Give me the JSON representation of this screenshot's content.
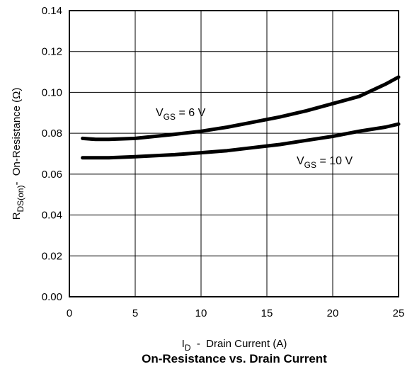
{
  "chart_data": {
    "type": "line",
    "title": "On-Resistance vs. Drain Current",
    "xlabel": {
      "main": "I",
      "sub": "D",
      "rest": "  -  Drain Current (A)"
    },
    "ylabel": {
      "main": "R",
      "sub": "DS(on)",
      "rest": "-  On-Resistance (Ω)"
    },
    "xlim": [
      0,
      25
    ],
    "ylim": [
      0,
      0.14
    ],
    "xticks": [
      "0",
      "5",
      "10",
      "15",
      "20",
      "25"
    ],
    "yticks": [
      "0.00",
      "0.02",
      "0.04",
      "0.06",
      "0.08",
      "0.10",
      "0.12",
      "0.14"
    ],
    "grid": true,
    "series": [
      {
        "label": {
          "main": "V",
          "sub": "GS",
          "rest": " = 6 V"
        },
        "x": [
          1,
          2,
          3,
          5,
          8,
          10,
          12,
          14,
          16,
          18,
          20,
          22,
          24,
          25
        ],
        "y": [
          0.0775,
          0.077,
          0.077,
          0.0775,
          0.0795,
          0.081,
          0.083,
          0.0855,
          0.088,
          0.091,
          0.0945,
          0.098,
          0.104,
          0.1075
        ]
      },
      {
        "label": {
          "main": "V",
          "sub": "GS",
          "rest": " = 10 V"
        },
        "x": [
          1,
          3,
          5,
          8,
          10,
          12,
          14,
          16,
          18,
          20,
          22,
          24,
          25
        ],
        "y": [
          0.068,
          0.068,
          0.0685,
          0.0695,
          0.0705,
          0.0715,
          0.073,
          0.0745,
          0.0765,
          0.0785,
          0.081,
          0.083,
          0.0845
        ]
      }
    ]
  }
}
